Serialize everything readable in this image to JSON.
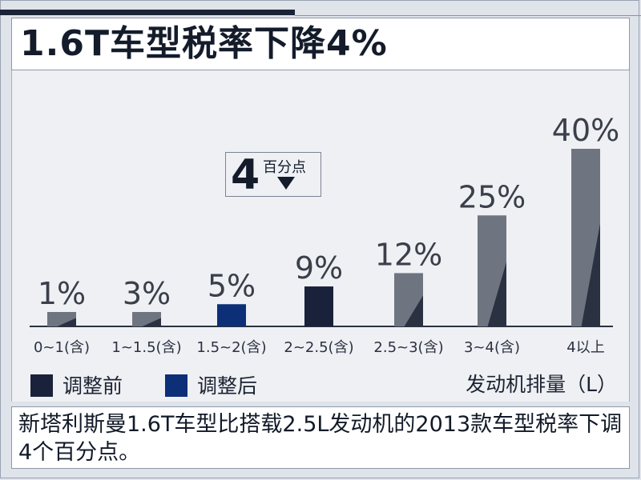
{
  "title": "1.6T车型税率下降4%",
  "caption": "新塔利斯曼1.6T车型比搭载2.5L发动机的2013款车型税率下调4个百分点。",
  "callout": {
    "value": "4",
    "label": "百分点"
  },
  "colors": {
    "before": "#19223a",
    "after": "#0c2f78",
    "gray": "#6f7580",
    "dark": "#2a3140"
  },
  "chart_data": {
    "type": "bar",
    "title": "1.6T车型税率下降4%",
    "xlabel": "发动机排量（L）",
    "ylabel": "",
    "categories": [
      "0~1(含)",
      "1~1.5(含)",
      "1.5~2(含)",
      "2~2.5(含)",
      "2.5~3(含)",
      "3~4(含)",
      "4以上"
    ],
    "data_labels": [
      "1%",
      "3%",
      "5%",
      "9%",
      "12%",
      "25%",
      "40%"
    ],
    "values": [
      1,
      3,
      5,
      9,
      12,
      25,
      40
    ],
    "series": [
      {
        "name": "调整前",
        "values": [
          null,
          null,
          null,
          9,
          null,
          null,
          null
        ]
      },
      {
        "name": "调整后",
        "values": [
          null,
          null,
          5,
          null,
          null,
          null,
          null
        ]
      }
    ],
    "ylim": [
      0,
      40
    ],
    "legend": {
      "placement": "bottom-left",
      "items": [
        "调整前",
        "调整后"
      ]
    },
    "grid": false
  }
}
